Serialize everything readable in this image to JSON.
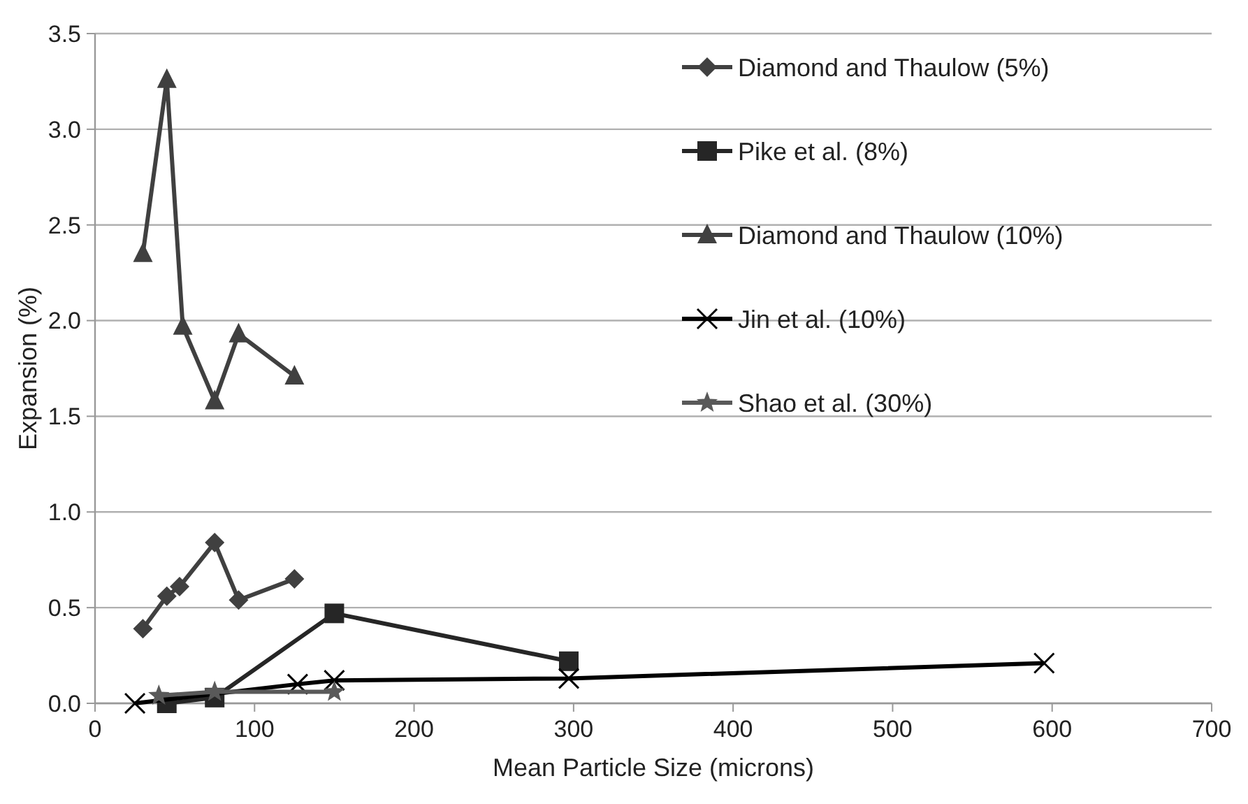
{
  "chart_data": {
    "type": "line",
    "xlabel": "Mean Particle Size (microns)",
    "ylabel": "Expansion (%)",
    "xlim": [
      0,
      700
    ],
    "xticks": [
      0,
      100,
      200,
      300,
      400,
      500,
      600,
      700
    ],
    "ylim": [
      0,
      3.5
    ],
    "yticks": [
      {
        "value": 0,
        "label": "0.0"
      },
      {
        "value": 0.5,
        "label": "0.5"
      },
      {
        "value": 1,
        "label": "1.0"
      },
      {
        "value": 1.5,
        "label": "1.5"
      },
      {
        "value": 2,
        "label": "2.0"
      },
      {
        "value": 2.5,
        "label": "2.5"
      },
      {
        "value": 3,
        "label": "3.0"
      },
      {
        "value": 3.5,
        "label": "3.5"
      }
    ],
    "grid": "y",
    "legend": "top right",
    "series": [
      {
        "name": "Diamond and Thaulow (5%)",
        "color": "#404040",
        "marker": "diamond",
        "x": [
          30,
          45,
          53,
          75,
          90,
          125
        ],
        "values": [
          0.39,
          0.56,
          0.61,
          0.84,
          0.54,
          0.65
        ]
      },
      {
        "name": "Pike et al. (8%)",
        "color": "#262626",
        "marker": "square",
        "x": [
          45,
          75,
          150,
          297
        ],
        "values": [
          0.0,
          0.03,
          0.47,
          0.22
        ]
      },
      {
        "name": "Diamond and Thaulow (10%)",
        "color": "#404040",
        "marker": "triangle",
        "x": [
          30,
          45,
          55,
          75,
          90,
          125
        ],
        "values": [
          2.35,
          3.26,
          1.97,
          1.58,
          1.93,
          1.71
        ]
      },
      {
        "name": "Jin et al. (10%)",
        "color": "#000000",
        "marker": "cross",
        "x": [
          25,
          75,
          127,
          150,
          297,
          595
        ],
        "values": [
          0.0,
          null,
          0.1,
          0.12,
          0.13,
          0.21
        ]
      },
      {
        "name": "Shao et al. (30%)",
        "color": "#595959",
        "marker": "star",
        "x": [
          40,
          75,
          150
        ],
        "values": [
          0.04,
          0.06,
          0.06
        ]
      }
    ]
  }
}
